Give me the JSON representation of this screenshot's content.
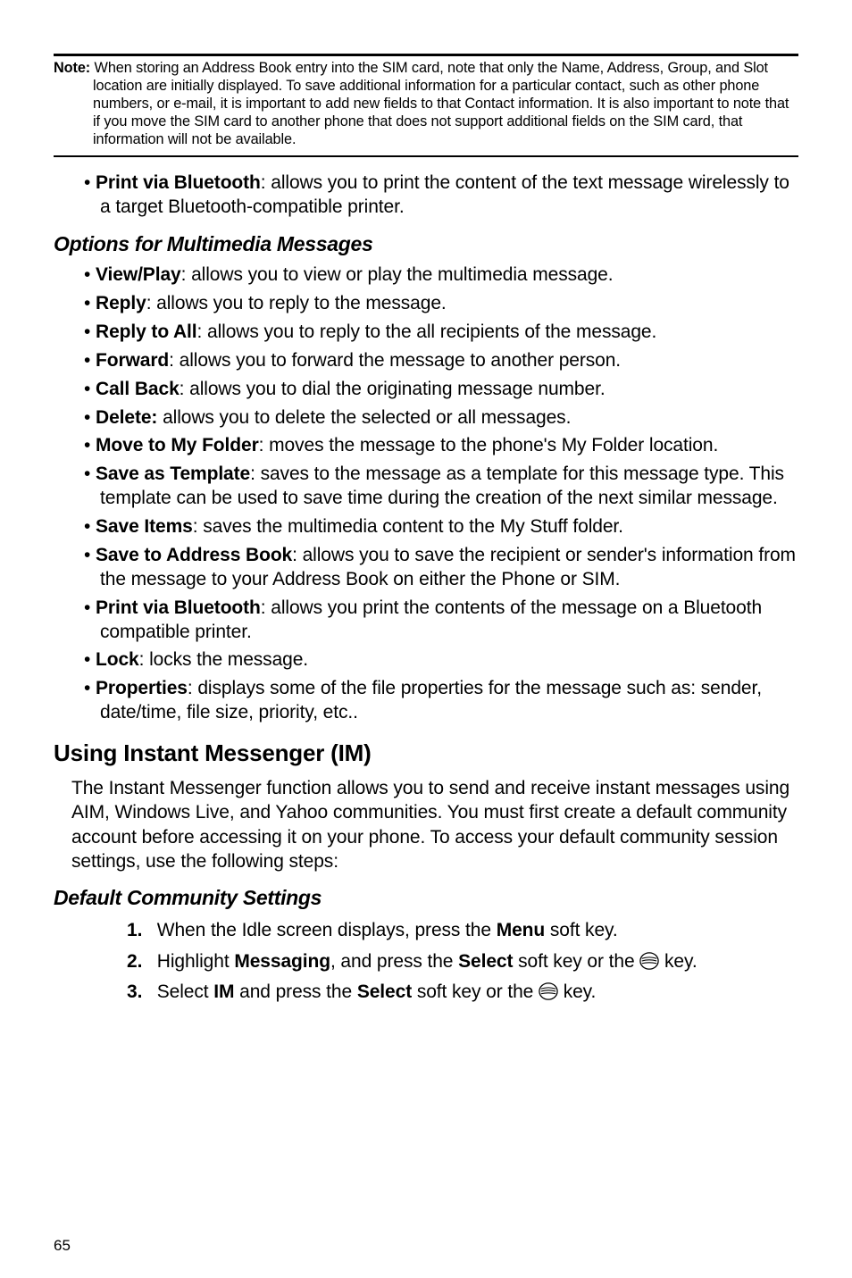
{
  "note": {
    "label": "Note:",
    "text": "When storing an Address Book entry into the SIM card, note that only the Name, Address, Group, and Slot location are initially displayed. To save additional information for a particular contact, such as other phone numbers, or e-mail, it is important to add new fields to that Contact information. It is also important to note that if you move the SIM card to another phone that does not support additional fields on the SIM card, that information will not be available."
  },
  "top_bullets": [
    {
      "term": "Print via Bluetooth",
      "desc": ": allows you to print the content of the text message wirelessly to a target Bluetooth-compatible printer."
    }
  ],
  "section1_title": "Options for Multimedia Messages",
  "section1_bullets": [
    {
      "term": "View/Play",
      "desc": ": allows you to view or play the multimedia message."
    },
    {
      "term": "Reply",
      "desc": ": allows you to reply to the message."
    },
    {
      "term": "Reply to All",
      "desc": ": allows you to reply to the all recipients of the message."
    },
    {
      "term": "Forward",
      "desc": ": allows you to forward the message to another person."
    },
    {
      "term": "Call Back",
      "desc": ": allows you to dial the originating message number."
    },
    {
      "term": "Delete:",
      "desc": " allows you to delete the selected or all messages."
    },
    {
      "term": "Move to My Folder",
      "desc": ": moves the message to the phone's My Folder location."
    },
    {
      "term": "Save as Template",
      "desc": ": saves to the message as a template for this message type. This template can be used to save time during the creation of the next similar message."
    },
    {
      "term": "Save Items",
      "desc": ": saves the multimedia content to the My Stuff folder."
    },
    {
      "term": "Save to Address Book",
      "desc": ": allows you to save the recipient or sender's information from the message to your Address Book on either the Phone or SIM."
    },
    {
      "term": "Print via Bluetooth",
      "desc": ": allows you print the contents of the message on a Bluetooth compatible printer."
    },
    {
      "term": "Lock",
      "desc": ": locks the message."
    },
    {
      "term": "Properties",
      "desc": ": displays some of the file properties for the message such as: sender, date/time, file size, priority, etc.."
    }
  ],
  "section2_title": "Using Instant Messenger (IM)",
  "section2_para": "The Instant Messenger function allows you to send and receive instant messages using AIM, Windows Live, and Yahoo communities. You must first create a default community account before accessing it on your phone. To access your default community session settings, use the following steps:",
  "section3_title": "Default Community Settings",
  "steps": {
    "s1_a": "When the Idle screen displays, press the ",
    "s1_b": "Menu",
    "s1_c": " soft key.",
    "s2_a": "Highlight ",
    "s2_b": "Messaging",
    "s2_c": ", and press the ",
    "s2_d": "Select",
    "s2_e": " soft key or the ",
    "s2_f": " key.",
    "s3_a": "Select ",
    "s3_b": "IM",
    "s3_c": " and press the ",
    "s3_d": "Select",
    "s3_e": " soft key or the ",
    "s3_f": " key."
  },
  "page_number": "65"
}
